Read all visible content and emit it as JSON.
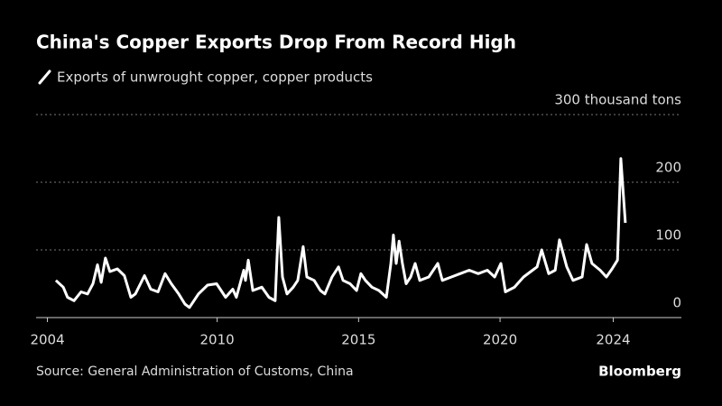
{
  "chart_data": {
    "type": "line",
    "title": "China's Copper Exports Drop From Record High",
    "source": "Source: General Administration of Customs, China",
    "brand": "Bloomberg",
    "xlim": [
      2003.6,
      2026.41
    ],
    "xticks": [
      2004,
      2010,
      2015,
      2020,
      2024
    ],
    "ylim": [
      0,
      300
    ],
    "yticks": [
      0,
      100,
      200,
      {
        "value": 300,
        "label": "300 thousand tons"
      }
    ],
    "grid": true,
    "x": [
      2004.3,
      2004.56,
      2004.71,
      2004.94,
      2005.19,
      2005.42,
      2005.61,
      2005.77,
      2005.9,
      2006.05,
      2006.21,
      2006.47,
      2006.72,
      2006.95,
      2007.11,
      2007.43,
      2007.65,
      2007.91,
      2008.16,
      2008.38,
      2008.64,
      2008.86,
      2009.02,
      2009.34,
      2009.66,
      2009.98,
      2010.3,
      2010.55,
      2010.68,
      2010.94,
      2011.0,
      2011.1,
      2011.26,
      2011.58,
      2011.83,
      2012.05,
      2012.18,
      2012.31,
      2012.47,
      2012.69,
      2012.85,
      2013.04,
      2013.17,
      2013.43,
      2013.65,
      2013.81,
      2014.06,
      2014.29,
      2014.45,
      2014.7,
      2014.93,
      2015.08,
      2015.24,
      2015.47,
      2015.72,
      2015.98,
      2016.14,
      2016.23,
      2016.33,
      2016.43,
      2016.55,
      2016.68,
      2016.84,
      2017.0,
      2017.16,
      2017.48,
      2017.8,
      2017.96,
      2018.28,
      2018.59,
      2018.91,
      2019.23,
      2019.55,
      2019.81,
      2020.03,
      2020.19,
      2020.51,
      2020.83,
      2021.15,
      2021.31,
      2021.47,
      2021.72,
      2021.95,
      2022.1,
      2022.36,
      2022.58,
      2022.9,
      2023.06,
      2023.25,
      2023.54,
      2023.76,
      2023.96,
      2024.15,
      2024.21,
      2024.27,
      2024.43
    ],
    "series": [
      {
        "name": "Exports of unwrought copper, copper products",
        "color": "#ffffff",
        "values": [
          55,
          45,
          30,
          25,
          38,
          35,
          50,
          78,
          52,
          88,
          68,
          72,
          62,
          30,
          35,
          62,
          42,
          38,
          65,
          50,
          35,
          20,
          15,
          35,
          48,
          50,
          30,
          42,
          30,
          70,
          55,
          85,
          40,
          45,
          30,
          25,
          148,
          60,
          35,
          45,
          55,
          105,
          60,
          55,
          40,
          35,
          60,
          75,
          55,
          50,
          40,
          65,
          55,
          45,
          40,
          30,
          80,
          122,
          80,
          113,
          80,
          50,
          60,
          80,
          55,
          60,
          80,
          55,
          60,
          65,
          70,
          65,
          70,
          60,
          80,
          38,
          45,
          60,
          70,
          75,
          100,
          65,
          70,
          115,
          75,
          55,
          60,
          108,
          80,
          70,
          60,
          72,
          85,
          160,
          235,
          140
        ]
      }
    ]
  }
}
